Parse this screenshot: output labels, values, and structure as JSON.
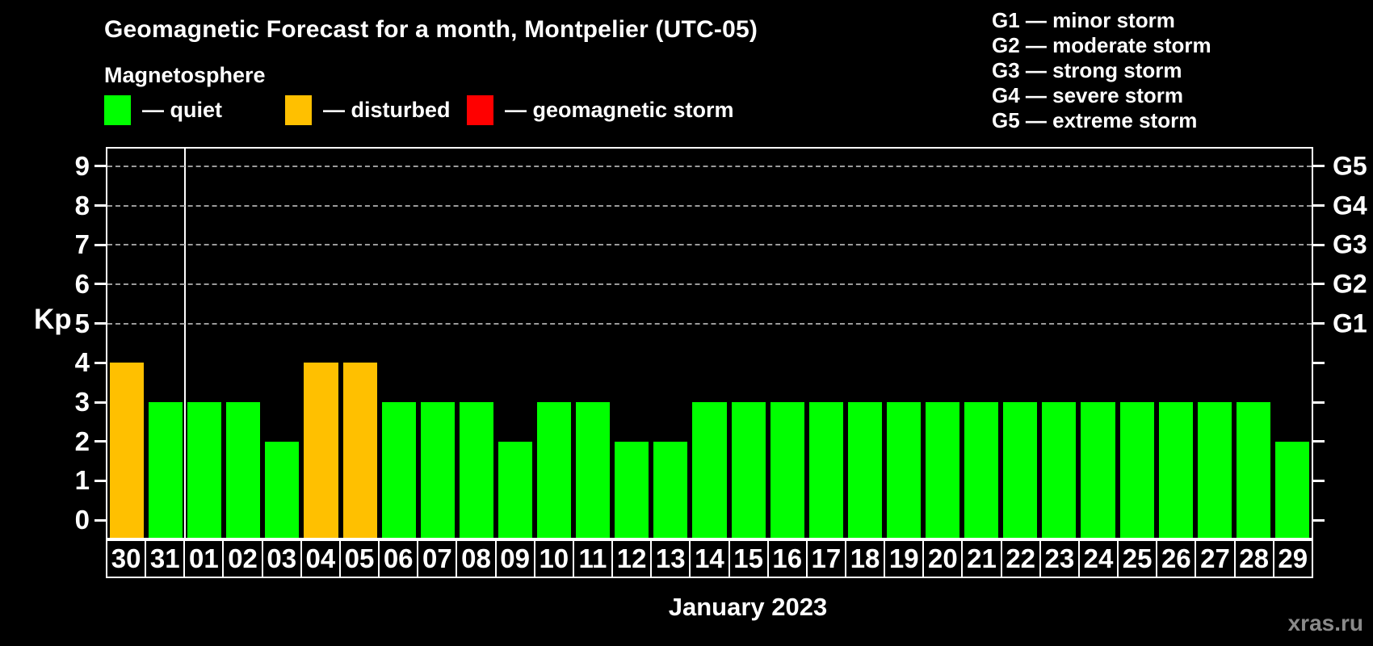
{
  "title": "Geomagnetic Forecast for a month, Montpelier (UTC-05)",
  "subtitle": "Magnetosphere",
  "kp_axis_label": "Kp",
  "x_axis_title": "January 2023",
  "watermark": "xras.ru",
  "status_colors": {
    "quiet": "#00ff00",
    "disturbed": "#ffc000",
    "storm": "#ff0000"
  },
  "magnetosphere_legend": [
    {
      "key": "quiet",
      "label": "— quiet"
    },
    {
      "key": "disturbed",
      "label": "— disturbed"
    },
    {
      "key": "storm",
      "label": "— geomagnetic storm"
    }
  ],
  "g_scale_legend": [
    "G1 — minor storm",
    "G2 — moderate storm",
    "G3 — strong storm",
    "G4 — severe storm",
    "G5 — extreme storm"
  ],
  "chart_data": {
    "type": "bar",
    "title": "Geomagnetic Forecast for a month, Montpelier (UTC-05)",
    "xlabel": "January 2023",
    "ylabel": "Kp",
    "ylim": [
      0,
      9
    ],
    "axis_render_range": {
      "min": -0.45,
      "max": 9.45
    },
    "y_ticks": [
      0,
      1,
      2,
      3,
      4,
      5,
      6,
      7,
      8,
      9
    ],
    "gridlines_at": [
      5,
      6,
      7,
      8,
      9
    ],
    "right_axis_labels": [
      {
        "kp": 5,
        "label": "G1"
      },
      {
        "kp": 6,
        "label": "G2"
      },
      {
        "kp": 7,
        "label": "G3"
      },
      {
        "kp": 8,
        "label": "G4"
      },
      {
        "kp": 9,
        "label": "G5"
      }
    ],
    "month_separator_after_slot": 2,
    "categories": [
      "30",
      "31",
      "01",
      "02",
      "03",
      "04",
      "05",
      "06",
      "07",
      "08",
      "09",
      "10",
      "11",
      "12",
      "13",
      "14",
      "15",
      "16",
      "17",
      "18",
      "19",
      "20",
      "21",
      "22",
      "23",
      "24",
      "25",
      "26",
      "27",
      "28",
      "29"
    ],
    "values": [
      4,
      3,
      3,
      3,
      2,
      4,
      4,
      3,
      3,
      3,
      2,
      3,
      3,
      2,
      2,
      3,
      3,
      3,
      3,
      3,
      3,
      3,
      3,
      3,
      3,
      3,
      3,
      3,
      3,
      3,
      2
    ],
    "statuses": [
      "disturbed",
      "quiet",
      "quiet",
      "quiet",
      "quiet",
      "disturbed",
      "disturbed",
      "quiet",
      "quiet",
      "quiet",
      "quiet",
      "quiet",
      "quiet",
      "quiet",
      "quiet",
      "quiet",
      "quiet",
      "quiet",
      "quiet",
      "quiet",
      "quiet",
      "quiet",
      "quiet",
      "quiet",
      "quiet",
      "quiet",
      "quiet",
      "quiet",
      "quiet",
      "quiet",
      "quiet"
    ],
    "legend_position": "top-left",
    "grid": "dashed-horizontal-G-levels-only"
  }
}
